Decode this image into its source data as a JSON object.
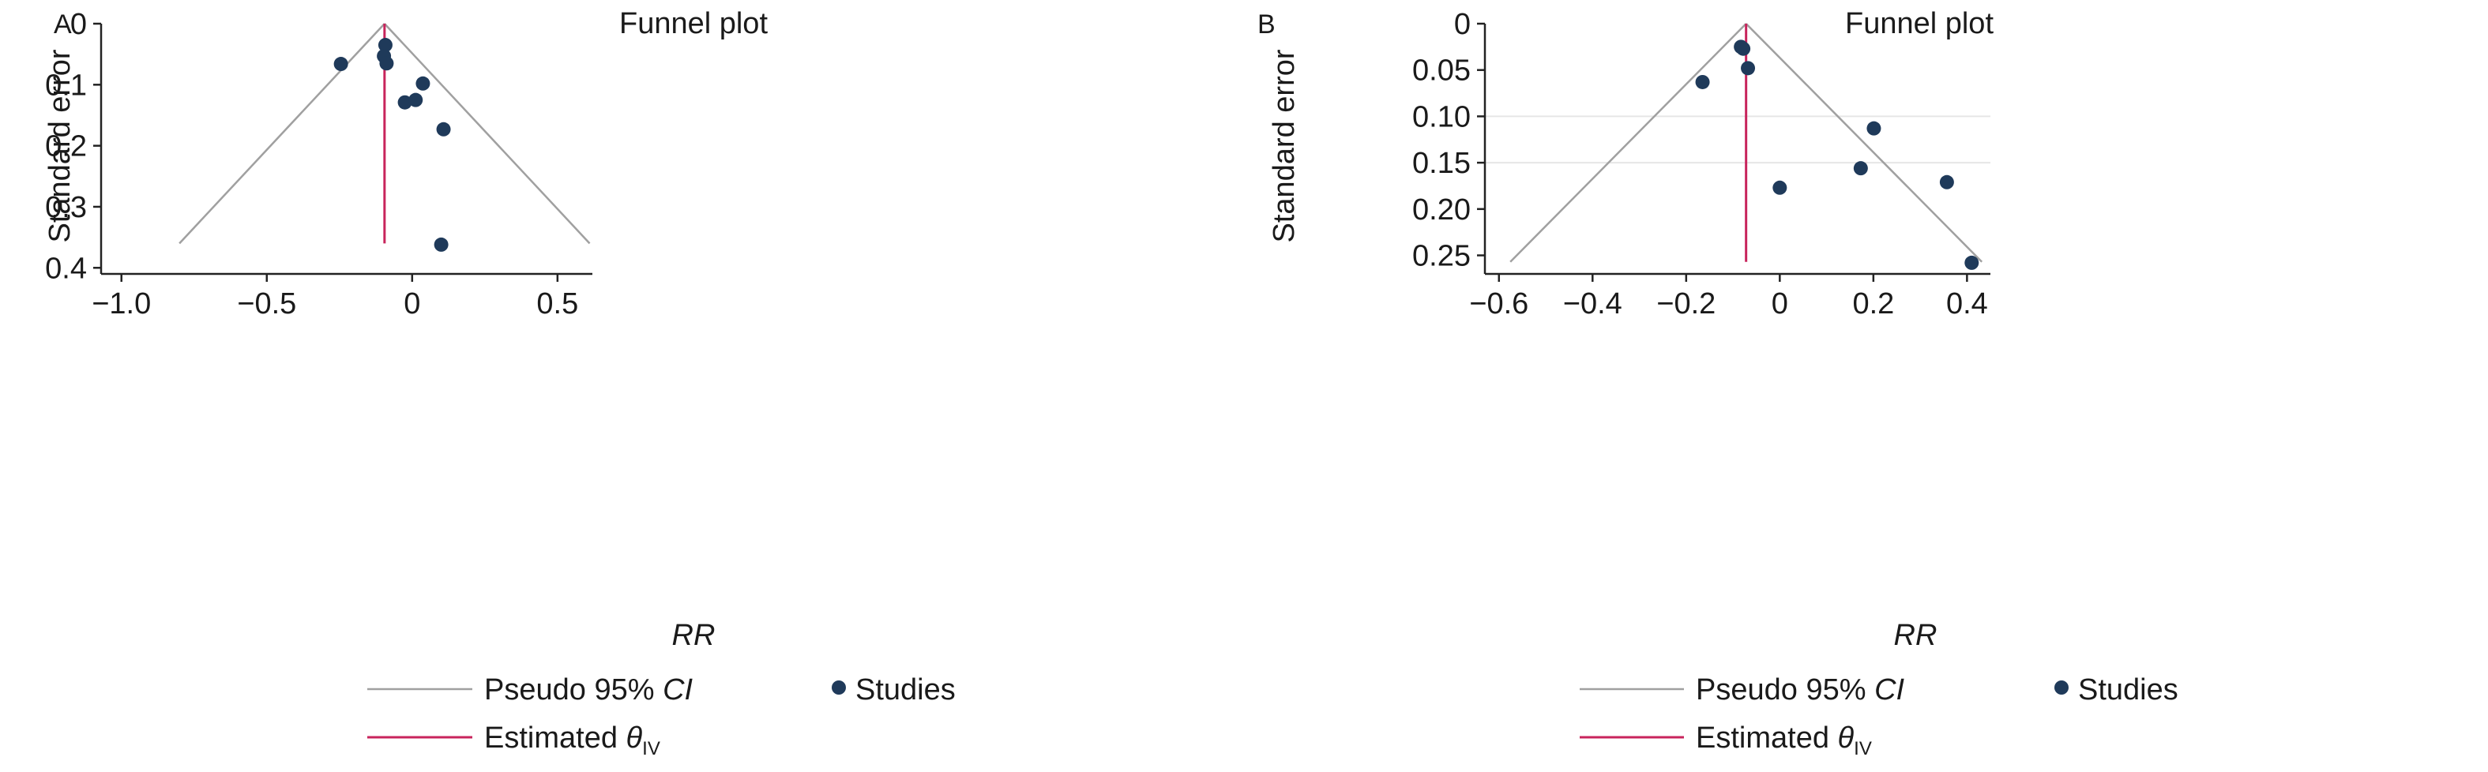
{
  "chart_data": [
    {
      "panel_label": "A",
      "type": "scatter",
      "title": "Funnel plot",
      "xlabel": "RR",
      "ylabel": "Standard error",
      "xlim": [
        -1.07,
        0.62
      ],
      "ylim": [
        0,
        0.41
      ],
      "y_reversed": true,
      "x_ticks": [
        -1.0,
        -0.5,
        0,
        0.5
      ],
      "x_tick_labels": [
        "−1.0",
        "−0.5",
        "0",
        "0.5"
      ],
      "y_ticks": [
        0,
        0.1,
        0.2,
        0.3,
        0.4
      ],
      "y_tick_labels": [
        "0",
        "0.1",
        "0.2",
        "0.3",
        "0.4"
      ],
      "grid": false,
      "estimate": -0.095,
      "funnel_max_se": 0.36,
      "studies": [
        {
          "x": -0.245,
          "y": 0.066
        },
        {
          "x": -0.092,
          "y": 0.035
        },
        {
          "x": -0.097,
          "y": 0.053
        },
        {
          "x": -0.088,
          "y": 0.065
        },
        {
          "x": 0.037,
          "y": 0.098
        },
        {
          "x": -0.025,
          "y": 0.129
        },
        {
          "x": 0.012,
          "y": 0.125
        },
        {
          "x": 0.108,
          "y": 0.173
        },
        {
          "x": 0.1,
          "y": 0.362
        }
      ],
      "legend": {
        "ci_prefix": "Pseudo 95% ",
        "ci_italic": "CI",
        "studies": "Studies",
        "est_prefix": "Estimated ",
        "est_theta": "θ",
        "est_sub": "IV"
      }
    },
    {
      "panel_label": "B",
      "type": "scatter",
      "title": "Funnel plot",
      "xlabel": "RR",
      "ylabel": "Standard error",
      "xlim": [
        -0.63,
        0.45
      ],
      "ylim": [
        0,
        0.27
      ],
      "y_reversed": true,
      "x_ticks": [
        -0.6,
        -0.4,
        -0.2,
        0,
        0.2,
        0.4
      ],
      "x_tick_labels": [
        "−0.6",
        "−0.4",
        "−0.2",
        "0",
        "0.2",
        "0.4"
      ],
      "y_ticks": [
        0,
        0.05,
        0.1,
        0.15,
        0.2,
        0.25
      ],
      "y_tick_labels": [
        "0",
        "0.05",
        "0.10",
        "0.15",
        "0.20",
        "0.25"
      ],
      "gridlines_y": [
        0.1,
        0.15
      ],
      "estimate": -0.072,
      "funnel_max_se": 0.257,
      "studies": [
        {
          "x": -0.083,
          "y": 0.025
        },
        {
          "x": -0.078,
          "y": 0.027
        },
        {
          "x": -0.068,
          "y": 0.048
        },
        {
          "x": -0.165,
          "y": 0.063
        },
        {
          "x": 0.201,
          "y": 0.113
        },
        {
          "x": 0.173,
          "y": 0.156
        },
        {
          "x": 0.0,
          "y": 0.177
        },
        {
          "x": 0.357,
          "y": 0.171
        },
        {
          "x": 0.41,
          "y": 0.258
        }
      ],
      "legend": {
        "ci_prefix": "Pseudo 95% ",
        "ci_italic": "CI",
        "studies": "Studies",
        "est_prefix": "Estimated ",
        "est_theta": "θ",
        "est_sub": "IV"
      }
    }
  ],
  "colors": {
    "ci_line": "#a0a0a0",
    "estimate_line": "#c8245c",
    "study_marker": "#1f3a5a",
    "axis": "#222222",
    "grid": "#e6e6e6"
  }
}
